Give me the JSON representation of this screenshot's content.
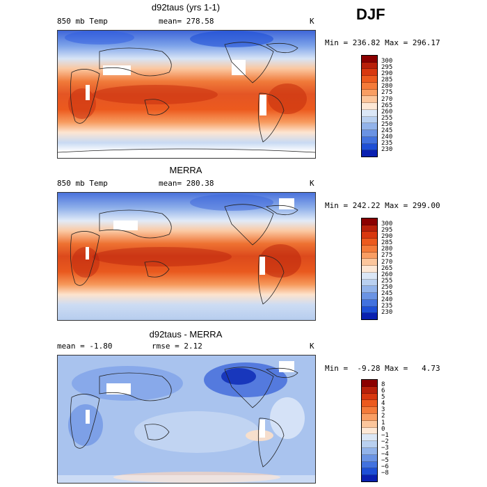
{
  "season": "DJF",
  "panels": [
    {
      "id": "model",
      "title": "d92taus (yrs 1-1)",
      "left_label": "850 mb Temp",
      "center_label": "mean= 278.58",
      "unit": "K",
      "minmax": "Min = 236.82 Max = 296.17",
      "colorbar_labels": [
        "300",
        "295",
        "290",
        "285",
        "280",
        "275",
        "270",
        "265",
        "260",
        "255",
        "250",
        "245",
        "240",
        "235",
        "230"
      ],
      "colorbar_colors": [
        "#8b0000",
        "#b8200a",
        "#d8380f",
        "#ec5a1e",
        "#f47b3a",
        "#f99e63",
        "#fcc69c",
        "#fde8d6",
        "#dbe7f6",
        "#b9d0f0",
        "#92b3ea",
        "#6a93e4",
        "#4272df",
        "#1e4fd6",
        "#0a20b0"
      ]
    },
    {
      "id": "obs",
      "title": "MERRA",
      "left_label": "850 mb Temp",
      "center_label": "mean= 280.38",
      "unit": "K",
      "minmax": "Min = 242.22 Max = 299.00",
      "colorbar_labels": [
        "300",
        "295",
        "290",
        "285",
        "280",
        "275",
        "270",
        "265",
        "260",
        "255",
        "250",
        "245",
        "240",
        "235",
        "230"
      ],
      "colorbar_colors": [
        "#8b0000",
        "#b8200a",
        "#d8380f",
        "#ec5a1e",
        "#f47b3a",
        "#f99e63",
        "#fcc69c",
        "#fde8d6",
        "#dbe7f6",
        "#b9d0f0",
        "#92b3ea",
        "#6a93e4",
        "#4272df",
        "#1e4fd6",
        "#0a20b0"
      ]
    },
    {
      "id": "diff",
      "title": "d92taus - MERRA",
      "left_label": "mean =  -1.80",
      "center_label": "rmse =   2.12",
      "unit": "K",
      "minmax": "Min =  -9.28 Max =   4.73",
      "colorbar_labels": [
        "8",
        "6",
        "5",
        "4",
        "3",
        "2",
        "1",
        "0",
        "−1",
        "−2",
        "−3",
        "−4",
        "−5",
        "−6",
        "−8"
      ],
      "colorbar_colors": [
        "#8b0000",
        "#b8200a",
        "#d8380f",
        "#ec5a1e",
        "#f47b3a",
        "#f99e63",
        "#fcc69c",
        "#fde8d6",
        "#dbe7f6",
        "#b9d0f0",
        "#92b3ea",
        "#6a93e4",
        "#4272df",
        "#1e4fd6",
        "#0a20b0"
      ]
    }
  ]
}
